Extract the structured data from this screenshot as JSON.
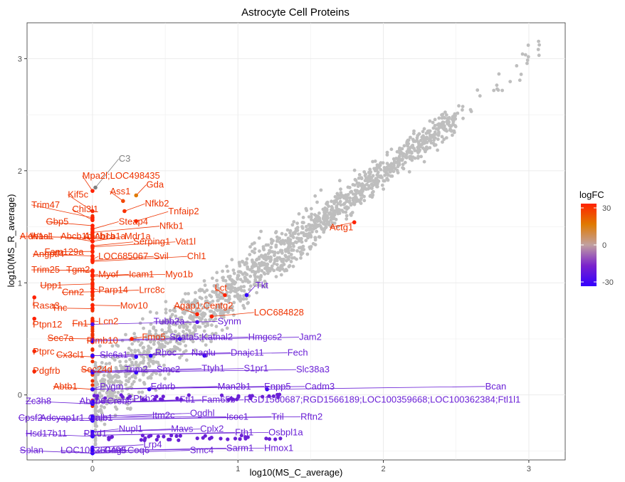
{
  "chart_data": {
    "type": "scatter",
    "title": "Astrocyte Cell Proteins",
    "xlabel": "log10(MS_C_average)",
    "ylabel": "log10(MS_R_average)",
    "xlim": [
      -0.45,
      3.25
    ],
    "ylim": [
      -0.58,
      3.32
    ],
    "x_ticks": [
      0,
      1,
      2,
      3
    ],
    "y_ticks": [
      0,
      1,
      2,
      3
    ],
    "grid": true,
    "legend": {
      "title": "logFC",
      "position": "right",
      "ticks": [
        30,
        0,
        -30
      ],
      "colors": {
        "high": "#ff2200",
        "mid_high": "#e07a00",
        "mid": "#c1a0a0",
        "mid_low": "#7a22cc",
        "low": "#3300ff"
      }
    },
    "background_color": "#bebebe",
    "background_count": 1700,
    "labeled_points": [
      {
        "gene": "C3",
        "x": 0.02,
        "y": 1.85,
        "logFC": 0,
        "lx": 0.18,
        "ly": 2.08
      },
      {
        "gene": "Mpa2l;LOC498435",
        "x": 0.0,
        "y": 1.82,
        "logFC": 30,
        "lx": -0.07,
        "ly": 1.93
      },
      {
        "gene": "Gda",
        "x": 0.3,
        "y": 1.78,
        "logFC": 18,
        "lx": 0.37,
        "ly": 1.85
      },
      {
        "gene": "Ass1",
        "x": 0.21,
        "y": 1.73,
        "logFC": 25,
        "lx": 0.12,
        "ly": 1.79
      },
      {
        "gene": "Kif5c",
        "x": 0.0,
        "y": 1.64,
        "logFC": 30,
        "lx": -0.17,
        "ly": 1.76
      },
      {
        "gene": "Nfkb2",
        "x": 0.22,
        "y": 1.64,
        "logFC": 28,
        "lx": 0.36,
        "ly": 1.68
      },
      {
        "gene": "Trim47",
        "x": 0.0,
        "y": 1.58,
        "logFC": 30,
        "lx": -0.42,
        "ly": 1.67
      },
      {
        "gene": "Chi3l1",
        "x": 0.0,
        "y": 1.56,
        "logFC": 30,
        "lx": -0.14,
        "ly": 1.63
      },
      {
        "gene": "Tnfaip2",
        "x": 0.3,
        "y": 1.55,
        "logFC": 30,
        "lx": 0.52,
        "ly": 1.61
      },
      {
        "gene": "Gbp5",
        "x": 0.0,
        "y": 1.51,
        "logFC": 30,
        "lx": -0.32,
        "ly": 1.52
      },
      {
        "gene": "Steap4",
        "x": 0.0,
        "y": 1.48,
        "logFC": 30,
        "lx": 0.18,
        "ly": 1.52
      },
      {
        "gene": "Nfkb1",
        "x": 0.0,
        "y": 1.45,
        "logFC": 30,
        "lx": 0.46,
        "ly": 1.48
      },
      {
        "gene": "Aldh1a1",
        "x": 0.0,
        "y": 1.4,
        "logFC": 30,
        "lx": -0.5,
        "ly": 1.39
      },
      {
        "gene": "Wasl",
        "x": 0.0,
        "y": 1.4,
        "logFC": 30,
        "lx": -0.43,
        "ly": 1.39
      },
      {
        "gene": "Abcb1b;Abcb1a",
        "x": 0.0,
        "y": 1.37,
        "logFC": 30,
        "lx": -0.22,
        "ly": 1.39
      },
      {
        "gene": "Abcb1a",
        "x": 0.0,
        "y": 1.37,
        "logFC": 30,
        "lx": -0.06,
        "ly": 1.39
      },
      {
        "gene": "Mdr1a",
        "x": 0.0,
        "y": 1.37,
        "logFC": 30,
        "lx": 0.22,
        "ly": 1.39
      },
      {
        "gene": "Serping1",
        "x": 0.0,
        "y": 1.33,
        "logFC": 30,
        "lx": 0.28,
        "ly": 1.34
      },
      {
        "gene": "Vat1l",
        "x": 0.0,
        "y": 1.32,
        "logFC": 30,
        "lx": 0.57,
        "ly": 1.34
      },
      {
        "gene": "Fam129a",
        "x": 0.0,
        "y": 1.28,
        "logFC": 30,
        "lx": -0.33,
        "ly": 1.25
      },
      {
        "gene": "Angptl4",
        "x": 0.0,
        "y": 1.24,
        "logFC": 30,
        "lx": -0.41,
        "ly": 1.23
      },
      {
        "gene": "LOC685067",
        "x": 0.0,
        "y": 1.21,
        "logFC": 30,
        "lx": 0.04,
        "ly": 1.21
      },
      {
        "gene": "Svil",
        "x": 0.0,
        "y": 1.2,
        "logFC": 30,
        "lx": 0.42,
        "ly": 1.21
      },
      {
        "gene": "Chl1",
        "x": 0.0,
        "y": 1.19,
        "logFC": 30,
        "lx": 0.65,
        "ly": 1.21
      },
      {
        "gene": "Trim25",
        "x": 0.0,
        "y": 1.11,
        "logFC": 30,
        "lx": -0.42,
        "ly": 1.09
      },
      {
        "gene": "Tgm2",
        "x": 0.0,
        "y": 1.1,
        "logFC": 30,
        "lx": -0.18,
        "ly": 1.09
      },
      {
        "gene": "Myof",
        "x": 0.0,
        "y": 1.07,
        "logFC": 30,
        "lx": 0.04,
        "ly": 1.05
      },
      {
        "gene": "Icam1",
        "x": 0.0,
        "y": 1.06,
        "logFC": 30,
        "lx": 0.25,
        "ly": 1.05
      },
      {
        "gene": "Myo1b",
        "x": 0.0,
        "y": 1.06,
        "logFC": 30,
        "lx": 0.5,
        "ly": 1.05
      },
      {
        "gene": "Upp1",
        "x": 0.0,
        "y": 0.99,
        "logFC": 30,
        "lx": -0.36,
        "ly": 0.95
      },
      {
        "gene": "Parp14",
        "x": 0.0,
        "y": 0.95,
        "logFC": 30,
        "lx": 0.04,
        "ly": 0.91
      },
      {
        "gene": "Lrrc8c",
        "x": 0.0,
        "y": 0.92,
        "logFC": 30,
        "lx": 0.32,
        "ly": 0.91
      },
      {
        "gene": "Cnn2",
        "x": 0.0,
        "y": 0.92,
        "logFC": 30,
        "lx": -0.21,
        "ly": 0.89
      },
      {
        "gene": "Lct",
        "x": 0.91,
        "y": 0.89,
        "logFC": 30,
        "lx": 0.84,
        "ly": 0.93
      },
      {
        "gene": "Mov10",
        "x": 0.0,
        "y": 0.8,
        "logFC": 30,
        "lx": 0.19,
        "ly": 0.77
      },
      {
        "gene": "Rasa3",
        "x": -0.4,
        "y": 0.87,
        "logFC": 30,
        "lx": -0.41,
        "ly": 0.77
      },
      {
        "gene": "Tnc",
        "x": 0.0,
        "y": 0.77,
        "logFC": 30,
        "lx": -0.28,
        "ly": 0.75
      },
      {
        "gene": "Agap1;Centg2",
        "x": 0.72,
        "y": 0.72,
        "logFC": 30,
        "lx": 0.56,
        "ly": 0.77
      },
      {
        "gene": "LOC684828",
        "x": 0.82,
        "y": 0.7,
        "logFC": 30,
        "lx": 1.11,
        "ly": 0.71
      },
      {
        "gene": "Lcn2",
        "x": 0.0,
        "y": 0.66,
        "logFC": 30,
        "lx": 0.04,
        "ly": 0.63
      },
      {
        "gene": "Fn1",
        "x": 0.0,
        "y": 0.63,
        "logFC": 30,
        "lx": -0.14,
        "ly": 0.61
      },
      {
        "gene": "Ptpn12",
        "x": -0.4,
        "y": 0.68,
        "logFC": 30,
        "lx": -0.41,
        "ly": 0.6
      },
      {
        "gene": "Fmo5",
        "x": 0.27,
        "y": 0.5,
        "logFC": 30,
        "lx": 0.34,
        "ly": 0.49
      },
      {
        "gene": "Sec7a",
        "x": 0.0,
        "y": 0.5,
        "logFC": 30,
        "lx": -0.31,
        "ly": 0.48
      },
      {
        "gene": "Plmb10",
        "x": 0.0,
        "y": 0.47,
        "logFC": 30,
        "lx": -0.04,
        "ly": 0.46
      },
      {
        "gene": "Ptprc",
        "x": -0.4,
        "y": 0.39,
        "logFC": 30,
        "lx": -0.41,
        "ly": 0.36
      },
      {
        "gene": "Cx3cl1",
        "x": 0.0,
        "y": 0.34,
        "logFC": 30,
        "lx": -0.25,
        "ly": 0.33
      },
      {
        "gene": "Pdgfrb",
        "x": -0.4,
        "y": 0.21,
        "logFC": 30,
        "lx": -0.41,
        "ly": 0.19
      },
      {
        "gene": "Sec24d",
        "x": 0.0,
        "y": 0.21,
        "logFC": 30,
        "lx": -0.08,
        "ly": 0.2
      },
      {
        "gene": "Abtb1",
        "x": 0.0,
        "y": 0.05,
        "logFC": 30,
        "lx": -0.27,
        "ly": 0.05
      },
      {
        "gene": "Actg1",
        "x": 1.8,
        "y": 1.54,
        "logFC": 30,
        "lx": 1.63,
        "ly": 1.47
      },
      {
        "gene": "Tkt",
        "x": 1.06,
        "y": 0.89,
        "logFC": -30,
        "lx": 1.12,
        "ly": 0.95
      },
      {
        "gene": "Tubb2a",
        "x": 0.72,
        "y": 0.65,
        "logFC": -25,
        "lx": 0.42,
        "ly": 0.63
      },
      {
        "gene": "Synm",
        "x": 0.0,
        "y": 0.63,
        "logFC": -25,
        "lx": 0.86,
        "ly": 0.63
      },
      {
        "gene": "Spata5;Katnal2",
        "x": 0.6,
        "y": 0.5,
        "logFC": -30,
        "lx": 0.53,
        "ly": 0.49
      },
      {
        "gene": "Hmgcs2",
        "x": 0.0,
        "y": 0.49,
        "logFC": -30,
        "lx": 1.07,
        "ly": 0.49
      },
      {
        "gene": "Jam2",
        "x": 0.0,
        "y": 0.48,
        "logFC": -30,
        "lx": 1.42,
        "ly": 0.49
      },
      {
        "gene": "Slc6a1",
        "x": 0.3,
        "y": 0.34,
        "logFC": -30,
        "lx": 0.05,
        "ly": 0.33
      },
      {
        "gene": "Rhoc",
        "x": 0.4,
        "y": 0.35,
        "logFC": -30,
        "lx": 0.43,
        "ly": 0.35
      },
      {
        "gene": "Naglu",
        "x": 0.77,
        "y": 0.35,
        "logFC": -30,
        "lx": 0.68,
        "ly": 0.35
      },
      {
        "gene": "Dnajc11",
        "x": 0.0,
        "y": 0.35,
        "logFC": -30,
        "lx": 0.95,
        "ly": 0.35
      },
      {
        "gene": "Fech",
        "x": 0.0,
        "y": 0.35,
        "logFC": -30,
        "lx": 1.34,
        "ly": 0.35
      },
      {
        "gene": "Trim2",
        "x": 0.3,
        "y": 0.2,
        "logFC": -30,
        "lx": 0.22,
        "ly": 0.2
      },
      {
        "gene": "Smc2",
        "x": 0.0,
        "y": 0.21,
        "logFC": -30,
        "lx": 0.44,
        "ly": 0.2
      },
      {
        "gene": "Ttyh1",
        "x": 0.0,
        "y": 0.21,
        "logFC": -30,
        "lx": 0.75,
        "ly": 0.21
      },
      {
        "gene": "S1pr1",
        "x": 0.0,
        "y": 0.2,
        "logFC": -30,
        "lx": 1.04,
        "ly": 0.21
      },
      {
        "gene": "Slc38a3",
        "x": 0.0,
        "y": 0.2,
        "logFC": -30,
        "lx": 1.4,
        "ly": 0.2
      },
      {
        "gene": "Pygm",
        "x": 0.0,
        "y": 0.05,
        "logFC": -30,
        "lx": 0.05,
        "ly": 0.05
      },
      {
        "gene": "Ednrb",
        "x": 0.39,
        "y": 0.05,
        "logFC": -30,
        "lx": 0.4,
        "ly": 0.05
      },
      {
        "gene": "Man2b1",
        "x": 0.0,
        "y": 0.05,
        "logFC": -30,
        "lx": 0.86,
        "ly": 0.05
      },
      {
        "gene": "Enpp5",
        "x": 0.0,
        "y": 0.05,
        "logFC": -30,
        "lx": 1.18,
        "ly": 0.05
      },
      {
        "gene": "Cadm3",
        "x": 0.0,
        "y": 0.05,
        "logFC": -30,
        "lx": 1.46,
        "ly": 0.05
      },
      {
        "gene": "Bcan",
        "x": 1.2,
        "y": 0.05,
        "logFC": -30,
        "lx": 2.7,
        "ly": 0.05
      },
      {
        "gene": "Zc3h8",
        "x": 0.0,
        "y": -0.08,
        "logFC": -30,
        "lx": -0.46,
        "ly": -0.08
      },
      {
        "gene": "Abcb6",
        "x": 0.0,
        "y": -0.08,
        "logFC": -30,
        "lx": -0.09,
        "ly": -0.08
      },
      {
        "gene": "Crebs",
        "x": 0.0,
        "y": -0.08,
        "logFC": -30,
        "lx": 0.1,
        "ly": -0.08
      },
      {
        "gene": "Ptrh2",
        "x": 0.0,
        "y": -0.06,
        "logFC": -30,
        "lx": 0.28,
        "ly": -0.06
      },
      {
        "gene": "Ftl1",
        "x": 0.0,
        "y": -0.07,
        "logFC": -30,
        "lx": 0.6,
        "ly": -0.07
      },
      {
        "gene": "Fam65b",
        "x": 0.0,
        "y": -0.07,
        "logFC": -30,
        "lx": 0.75,
        "ly": -0.07
      },
      {
        "gene": "RGD1560687;RGD1566189;LOC100359668;LOC100362384;Ftl1l1",
        "x": 0.0,
        "y": -0.07,
        "logFC": -30,
        "lx": 1.04,
        "ly": -0.07
      },
      {
        "gene": "Ogdhl",
        "x": 0.0,
        "y": -0.19,
        "logFC": -30,
        "lx": 0.67,
        "ly": -0.19
      },
      {
        "gene": "Isoc1",
        "x": 0.0,
        "y": -0.2,
        "logFC": -30,
        "lx": 0.92,
        "ly": -0.22
      },
      {
        "gene": "Tril",
        "x": 0.0,
        "y": -0.22,
        "logFC": -30,
        "lx": 1.23,
        "ly": -0.22
      },
      {
        "gene": "Rftn2",
        "x": 0.0,
        "y": -0.22,
        "logFC": -30,
        "lx": 1.43,
        "ly": -0.22
      },
      {
        "gene": "Cpsf2",
        "x": 0.0,
        "y": -0.21,
        "logFC": -30,
        "lx": -0.51,
        "ly": -0.23
      },
      {
        "gene": "Adcyap1r1",
        "x": 0.0,
        "y": -0.23,
        "logFC": -30,
        "lx": -0.36,
        "ly": -0.23
      },
      {
        "gene": "Galb1",
        "x": 0.0,
        "y": -0.23,
        "logFC": -30,
        "lx": -0.03,
        "ly": -0.23
      },
      {
        "gene": "Itm2c",
        "x": 0.0,
        "y": -0.21,
        "logFC": -30,
        "lx": 0.41,
        "ly": -0.21
      },
      {
        "gene": "Mavs",
        "x": 0.0,
        "y": -0.33,
        "logFC": -30,
        "lx": 0.54,
        "ly": -0.33
      },
      {
        "gene": "Cplx2",
        "x": 0.0,
        "y": -0.33,
        "logFC": -30,
        "lx": 0.74,
        "ly": -0.33
      },
      {
        "gene": "Fth1",
        "x": 0.0,
        "y": -0.36,
        "logFC": -30,
        "lx": 0.98,
        "ly": -0.36
      },
      {
        "gene": "Osbpl1a",
        "x": 0.0,
        "y": -0.36,
        "logFC": -30,
        "lx": 1.21,
        "ly": -0.36
      },
      {
        "gene": "Nupl1",
        "x": 0.0,
        "y": -0.33,
        "logFC": -30,
        "lx": 0.18,
        "ly": -0.33
      },
      {
        "gene": "Hsd17b11",
        "x": 0.0,
        "y": -0.37,
        "logFC": -30,
        "lx": -0.46,
        "ly": -0.37
      },
      {
        "gene": "Plcd1",
        "x": 0.0,
        "y": -0.37,
        "logFC": -30,
        "lx": -0.06,
        "ly": -0.37
      },
      {
        "gene": "Lrp4",
        "x": 0.0,
        "y": -0.47,
        "logFC": -30,
        "lx": 0.35,
        "ly": -0.47
      },
      {
        "gene": "Sarm1",
        "x": 0.0,
        "y": -0.5,
        "logFC": -30,
        "lx": 0.92,
        "ly": -0.5
      },
      {
        "gene": "Hmox1",
        "x": 0.0,
        "y": -0.5,
        "logFC": -30,
        "lx": 1.18,
        "ly": -0.5
      },
      {
        "gene": "Smc4",
        "x": 0.0,
        "y": -0.52,
        "logFC": -30,
        "lx": 0.67,
        "ly": -0.52
      },
      {
        "gene": "Coq6",
        "x": 0.0,
        "y": -0.52,
        "logFC": -30,
        "lx": 0.24,
        "ly": -0.52
      },
      {
        "gene": "Gng5",
        "x": 0.0,
        "y": -0.52,
        "logFC": -30,
        "lx": 0.08,
        "ly": -0.52
      },
      {
        "gene": "LOC100360499",
        "x": 0.0,
        "y": -0.52,
        "logFC": -30,
        "lx": -0.22,
        "ly": -0.52
      },
      {
        "gene": "Splan",
        "x": 0.0,
        "y": -0.52,
        "logFC": -30,
        "lx": -0.5,
        "ly": -0.52
      }
    ]
  }
}
